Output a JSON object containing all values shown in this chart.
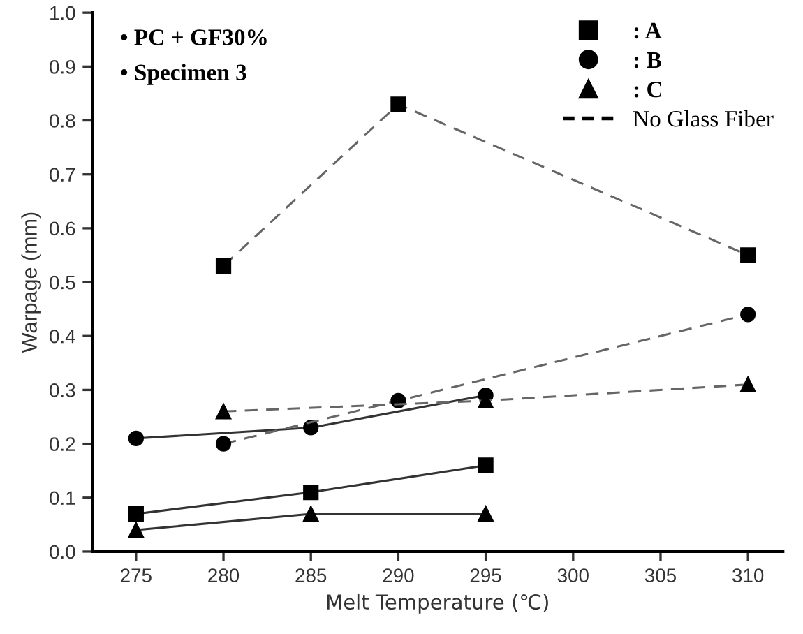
{
  "chart_data": {
    "type": "line",
    "xlabel": "Melt Temperature (℃)",
    "ylabel": "Warpage (mm)",
    "xlim": [
      272.5,
      312
    ],
    "xticks": [
      275,
      280,
      285,
      290,
      295,
      300,
      305,
      310
    ],
    "ylim": [
      0,
      1.0
    ],
    "yticks": [
      {
        "value": 0,
        "label": "0.0"
      },
      0.1,
      0.2,
      0.3,
      0.4,
      0.5,
      0.6,
      0.7,
      0.8,
      0.9,
      {
        "value": 1.0,
        "label": "1.0"
      }
    ],
    "grid": false,
    "legend": "top right",
    "annotations": [
      "• PC + GF30%",
      "• Specimen 3"
    ],
    "series": [
      {
        "name": ": A",
        "color": "#000000",
        "marker": "square",
        "line_style": "solid",
        "x": [
          275,
          285,
          295
        ],
        "values": [
          0.07,
          0.11,
          0.16
        ]
      },
      {
        "name": ": B",
        "color": "#000000",
        "marker": "circle",
        "line_style": "solid",
        "x": [
          275,
          285,
          295
        ],
        "values": [
          0.21,
          0.23,
          0.29
        ]
      },
      {
        "name": ": C",
        "color": "#000000",
        "marker": "triangle",
        "line_style": "solid",
        "x": [
          275,
          285,
          295
        ],
        "values": [
          0.04,
          0.07,
          0.07
        ]
      },
      {
        "name": "No Glass Fiber",
        "color": "#000000",
        "marker": "square",
        "line_style": "dashed",
        "x": [
          280,
          290,
          310
        ],
        "values": [
          0.53,
          0.83,
          0.55
        ]
      },
      {
        "color": "#000000",
        "marker": "circle",
        "line_style": "dashed",
        "x": [
          280,
          290,
          310
        ],
        "values": [
          0.2,
          0.28,
          0.44
        ]
      },
      {
        "color": "#000000",
        "marker": "triangle",
        "line_style": "dashed",
        "x": [
          280,
          295,
          310
        ],
        "values": [
          0.26,
          0.28,
          0.31
        ]
      }
    ]
  }
}
